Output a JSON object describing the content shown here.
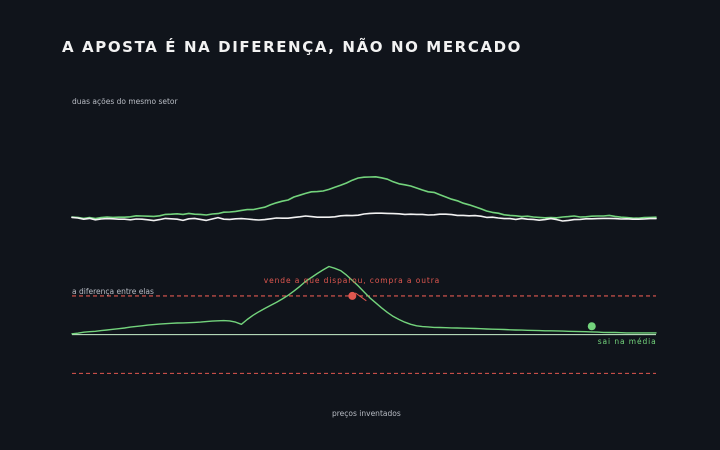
{
  "title": "A APOSTA É NA DIFERENÇA, NÃO NO MERCADO",
  "top_panel_label": "duas ações do mesmo setor",
  "bottom_panel_label": "a diferença entre elas",
  "footer": "preços inventados",
  "colors": {
    "background": "#10141b",
    "stock_a": "#73d37c",
    "stock_b": "#f2f2f2",
    "spread": "#73d37c",
    "band": "#e0574f",
    "mean_line": "#c9f2cd",
    "sell_annotation": "#e0574f",
    "exit_annotation": "#73d37c"
  },
  "chart_data": [
    {
      "type": "line",
      "title": "duas ações do mesmo setor",
      "x_range": [
        0,
        100
      ],
      "ylim": [
        -2,
        23
      ],
      "grid": false,
      "legend": "none",
      "series": [
        {
          "values": [
            0.5,
            0.3,
            -0.2,
            0.2,
            -0.3,
            0.2,
            0.5,
            0.3,
            0.4,
            0.4,
            0.6,
            1.1,
            1.0,
            0.9,
            0.8,
            1.1,
            1.8,
            1.9,
            2.1,
            1.8,
            2.3,
            1.9,
            1.8,
            1.5,
            2.0,
            2.2,
            2.9,
            3.0,
            3.3,
            3.8,
            4.2,
            4.2,
            4.8,
            5.4,
            6.6,
            7.6,
            8.4,
            9.0,
            10.5,
            11.4,
            12.3,
            13.1,
            13.2,
            13.5,
            14.3,
            15.4,
            16.4,
            17.5,
            18.9,
            20.0,
            20.4,
            20.5,
            20.6,
            20.1,
            19.4,
            18.1,
            17.1,
            16.6,
            16.0,
            15.0,
            14.0,
            13.1,
            12.8,
            11.6,
            10.5,
            9.4,
            8.6,
            7.4,
            6.6,
            5.6,
            4.6,
            3.5,
            2.8,
            2.4,
            1.6,
            1.3,
            1.1,
            0.7,
            0.9,
            0.5,
            0.3,
            0.1,
            0.2,
            0.1,
            0.5,
            0.7,
            1.0,
            0.5,
            0.6,
            0.9,
            1.0,
            1.0,
            1.3,
            0.8,
            0.4,
            0.2,
            0.0,
            -0.1,
            0.2,
            0.3,
            0.4
          ]
        },
        {
          "values": [
            0.3,
            0.0,
            -0.6,
            -0.2,
            -0.9,
            -0.5,
            -0.3,
            -0.4,
            -0.6,
            -0.6,
            -0.9,
            -0.5,
            -0.6,
            -0.9,
            -1.3,
            -0.8,
            -0.2,
            -0.4,
            -0.6,
            -1.2,
            -0.4,
            -0.2,
            -0.7,
            -1.2,
            -0.5,
            0.2,
            -0.6,
            -0.7,
            -0.4,
            -0.3,
            -0.5,
            -0.8,
            -1.0,
            -0.8,
            -0.4,
            0.0,
            -0.1,
            -0.1,
            0.3,
            0.6,
            1.0,
            0.7,
            0.4,
            0.4,
            0.4,
            0.6,
            1.1,
            1.3,
            1.2,
            1.4,
            2.0,
            2.3,
            2.4,
            2.4,
            2.3,
            2.2,
            2.1,
            1.8,
            1.9,
            1.8,
            1.8,
            1.5,
            1.6,
            1.9,
            1.9,
            1.7,
            1.3,
            1.3,
            1.1,
            1.2,
            0.9,
            0.3,
            0.4,
            0.0,
            -0.3,
            -0.3,
            -0.7,
            -0.2,
            -0.6,
            -0.7,
            -1.1,
            -0.8,
            -0.3,
            -0.8,
            -1.5,
            -1.2,
            -0.8,
            -0.7,
            -0.4,
            -0.4,
            -0.3,
            -0.2,
            -0.2,
            -0.3,
            -0.5,
            -0.4,
            -0.6,
            -0.6,
            -0.5,
            -0.3,
            -0.3
          ]
        }
      ]
    },
    {
      "type": "line",
      "title": "a diferença entre elas",
      "x_range": [
        0,
        100
      ],
      "ylim": [
        -25,
        45
      ],
      "mean": 0,
      "bands": [
        24,
        -24
      ],
      "grid": false,
      "legend": "none",
      "series": [
        {
          "values": [
            0.5,
            0.9,
            1.5,
            1.8,
            2.1,
            2.5,
            2.9,
            3.3,
            3.7,
            4.1,
            4.7,
            5.1,
            5.5,
            5.9,
            6.2,
            6.5,
            6.8,
            7.0,
            7.2,
            7.3,
            7.4,
            7.6,
            7.8,
            8.1,
            8.4,
            8.6,
            8.7,
            8.5,
            7.8,
            6.4,
            9.4,
            12.0,
            14.2,
            16.2,
            18.1,
            20.0,
            22.1,
            24.4,
            27.0,
            29.9,
            33.0,
            35.4,
            37.9,
            40.1,
            42.2,
            41.1,
            39.7,
            36.9,
            33.6,
            30.2,
            26.5,
            22.8,
            19.7,
            16.6,
            13.8,
            11.3,
            9.4,
            7.7,
            6.4,
            5.5,
            5.0,
            4.8,
            4.5,
            4.4,
            4.3,
            4.2,
            4.1,
            4.0,
            3.9,
            3.8,
            3.7,
            3.5,
            3.4,
            3.3,
            3.2,
            3.0,
            2.9,
            2.8,
            2.7,
            2.6,
            2.5,
            2.4,
            2.4,
            2.3,
            2.2,
            2.1,
            2.0,
            1.9,
            1.8,
            1.7,
            1.6,
            1.4,
            1.3,
            1.3,
            1.2,
            1.1,
            1.1,
            1.1,
            1.1,
            1.1,
            1.1
          ]
        }
      ],
      "annotations": [
        {
          "x": 48,
          "y": 24,
          "text": "vende a que disparou, compra a outra"
        },
        {
          "x": 89,
          "y": 5.2,
          "text": "sai na média"
        }
      ]
    }
  ]
}
